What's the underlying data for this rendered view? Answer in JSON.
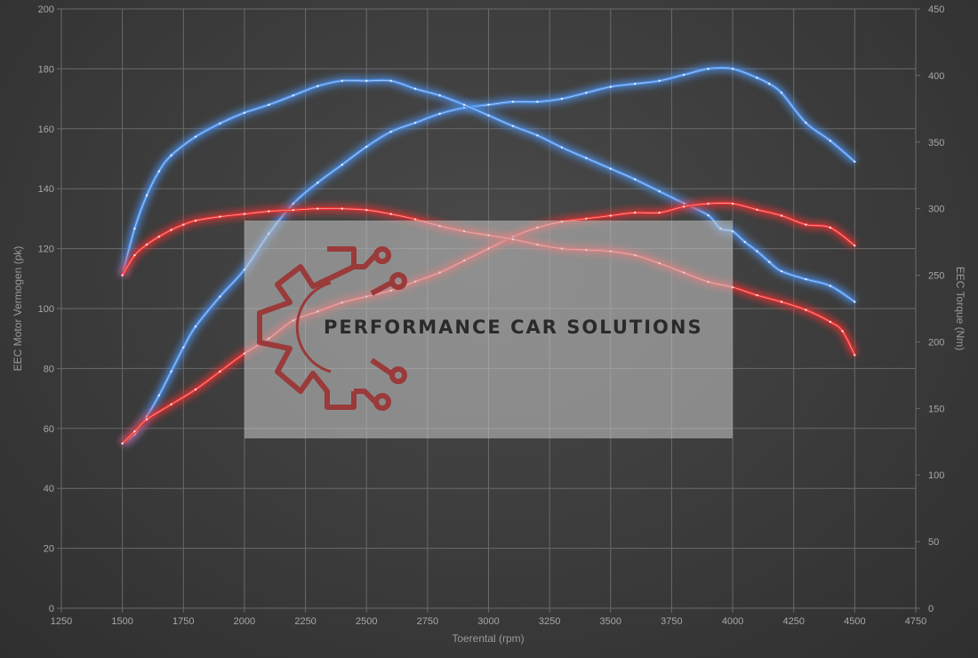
{
  "chart_data": {
    "type": "line",
    "xlabel": "Toerental (rpm)",
    "ylabel_left": "EEC Motor Vermogen (pk)",
    "ylabel_right": "EEC Torque (Nm)",
    "xlim": [
      1250,
      4750
    ],
    "ylim_left": [
      0,
      200
    ],
    "ylim_right": [
      0,
      450
    ],
    "x_ticks": [
      1250,
      1500,
      1750,
      2000,
      2250,
      2500,
      2750,
      3000,
      3250,
      3500,
      3750,
      4000,
      4250,
      4500,
      4750
    ],
    "y_left_ticks": [
      0,
      20,
      40,
      60,
      80,
      100,
      120,
      140,
      160,
      180,
      200
    ],
    "y_right_ticks": [
      0,
      50,
      100,
      150,
      200,
      250,
      300,
      350,
      400,
      450
    ],
    "grid": true,
    "series": [
      {
        "color": "#4d8fe6",
        "axis": "left",
        "x": [
          1500,
          1550,
          1600,
          1650,
          1700,
          1750,
          1800,
          1900,
          2000,
          2100,
          2200,
          2300,
          2400,
          2500,
          2600,
          2700,
          2800,
          2900,
          3000,
          3100,
          3200,
          3300,
          3400,
          3500,
          3600,
          3700,
          3800,
          3900,
          4000,
          4100,
          4150,
          4200,
          4300,
          4400,
          4500
        ],
        "y": [
          55,
          58,
          64,
          71,
          79,
          87,
          94,
          104,
          113,
          125,
          135,
          142,
          148,
          154,
          159,
          162,
          165,
          167,
          168,
          169,
          169,
          170,
          172,
          174,
          175,
          176,
          178,
          180,
          180,
          177,
          175,
          172,
          162,
          156,
          149
        ]
      },
      {
        "color": "#4d8fe6",
        "axis": "right",
        "x": [
          1500,
          1550,
          1600,
          1650,
          1700,
          1800,
          1900,
          2000,
          2100,
          2200,
          2300,
          2400,
          2500,
          2600,
          2700,
          2800,
          2900,
          3000,
          3100,
          3200,
          3300,
          3400,
          3500,
          3600,
          3700,
          3800,
          3900,
          3950,
          4000,
          4050,
          4100,
          4150,
          4200,
          4300,
          4400,
          4500
        ],
        "y": [
          250,
          285,
          310,
          328,
          340,
          354,
          364,
          372,
          378,
          385,
          392,
          396,
          396,
          396,
          390,
          385,
          378,
          370,
          362,
          355,
          346,
          338,
          330,
          322,
          313,
          304,
          295,
          285,
          283,
          275,
          268,
          260,
          253,
          247,
          242,
          230
        ]
      },
      {
        "color": "#e63030",
        "axis": "left",
        "x": [
          1500,
          1550,
          1600,
          1700,
          1800,
          1900,
          2000,
          2100,
          2200,
          2300,
          2400,
          2500,
          2600,
          2700,
          2800,
          2900,
          3000,
          3100,
          3200,
          3300,
          3400,
          3500,
          3600,
          3700,
          3800,
          3900,
          4000,
          4100,
          4200,
          4300,
          4400,
          4500
        ],
        "y": [
          55,
          59,
          63,
          68,
          73,
          79,
          85,
          90,
          96,
          99,
          102,
          104,
          106,
          109,
          112,
          116,
          120,
          124,
          127,
          129,
          130,
          131,
          132,
          132,
          134,
          135,
          135,
          133,
          131,
          128,
          127,
          121
        ]
      },
      {
        "color": "#e63030",
        "axis": "right",
        "x": [
          1500,
          1550,
          1600,
          1650,
          1700,
          1750,
          1800,
          1900,
          2000,
          2100,
          2200,
          2300,
          2400,
          2500,
          2600,
          2700,
          2800,
          2900,
          3000,
          3100,
          3200,
          3300,
          3400,
          3500,
          3600,
          3700,
          3800,
          3900,
          4000,
          4100,
          4200,
          4300,
          4400,
          4450,
          4500
        ],
        "y": [
          250,
          265,
          273,
          279,
          284,
          288,
          291,
          294,
          296,
          298,
          299,
          300,
          300,
          299,
          296,
          292,
          287,
          283,
          280,
          277,
          273,
          270,
          269,
          268,
          265,
          259,
          252,
          245,
          241,
          235,
          230,
          224,
          215,
          208,
          190
        ]
      }
    ],
    "watermark": "PERFORMANCE CAR SOLUTIONS"
  }
}
